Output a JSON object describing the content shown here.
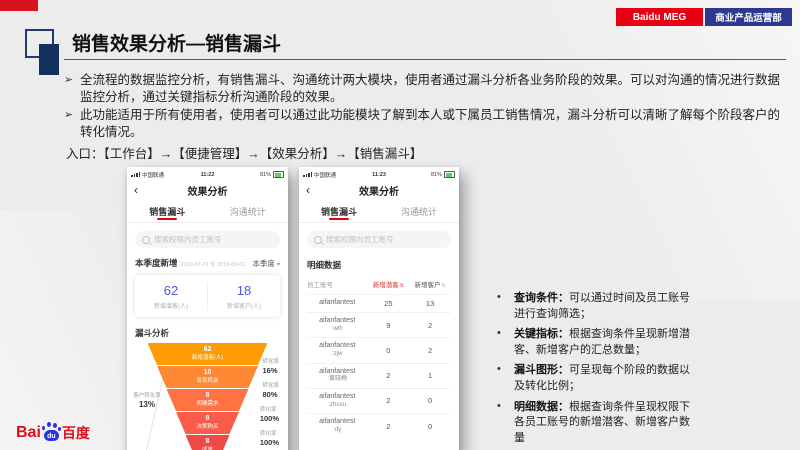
{
  "slide": {
    "title": "销售效果分析—销售漏斗",
    "badge_meg": "Baidu MEG",
    "badge_dept": "商业产品运营部",
    "accent_red": "#e60012",
    "badge_blue": "#2b3990",
    "marker_glyph": "➢",
    "dot_glyph": "•",
    "intro_bullets": [
      "全流程的数据监控分析，有销售漏斗、沟通统计两大模块，使用者通过漏斗分析各业务阶段的效果。可以对沟通的情况进行数据监控分析，通过关键指标分析沟通阶段的效果。",
      "此功能适用于所有使用者，使用者可以通过此功能模块了解到本人或下属员工销售情况，漏斗分析可以清晰了解每个阶段客户的转化情况。"
    ],
    "entry_path": "入口：【工作台】→【便捷管理】→【效果分析】→【销售漏斗】"
  },
  "phone1": {
    "status": {
      "carrier": "中国联通",
      "time": "11:22",
      "battery": "81%"
    },
    "back_glyph": "‹",
    "nav_title": "效果分析",
    "tabs": {
      "active": "销售漏斗",
      "inactive": "沟通统计"
    },
    "search_placeholder": "搜索权限内员工账号",
    "period": {
      "label": "本季度新增",
      "range": "2019-07-01 至 2019-09-01",
      "selector": "本季度",
      "caret": "▾"
    },
    "stats": [
      {
        "value": "62",
        "label": "新增潜客(人)"
      },
      {
        "value": "18",
        "label": "新增客户(人)"
      }
    ],
    "funnel_title": "漏斗分析",
    "funnel": {
      "overall_label": "客户转化率",
      "overall_rate": "13%",
      "rate_label": "转化率",
      "stages": [
        {
          "value": "62",
          "label": "新增潜客(人)",
          "color": "#ff9b05",
          "rate": ""
        },
        {
          "value": "10",
          "label": "发现机会",
          "color": "#ff8835",
          "rate": "16%"
        },
        {
          "value": "8",
          "label": "明确需求",
          "color": "#ff7244",
          "rate": "80%"
        },
        {
          "value": "8",
          "label": "决策购买",
          "color": "#fa5c49",
          "rate": "100%"
        },
        {
          "value": "8",
          "label": "成单",
          "color": "#ef4a43",
          "rate": "100%"
        }
      ]
    }
  },
  "phone2": {
    "status": {
      "carrier": "中国联通",
      "time": "11:23",
      "battery": "81%"
    },
    "back_glyph": "‹",
    "nav_title": "效果分析",
    "tabs": {
      "active": "销售漏斗",
      "inactive": "沟通统计"
    },
    "search_placeholder": "搜索权限内员工账号",
    "section_title": "明细数据",
    "table": {
      "headers": [
        "员工账号",
        "新增潜客",
        "新增客户"
      ],
      "sort_glyph": "⇅",
      "rows": [
        {
          "account": "aifanfantest",
          "sub": "",
          "leads": "25",
          "customers": "13"
        },
        {
          "account": "aifanfantest",
          "sub": ":wlh",
          "leads": "9",
          "customers": "2"
        },
        {
          "account": "aifanfantest",
          "sub": ":zjw",
          "leads": "0",
          "customers": "2"
        },
        {
          "account": "aifanfantest",
          "sub": ":黄晓梅",
          "leads": "2",
          "customers": "1"
        },
        {
          "account": "aifanfantest",
          "sub": ":zhuxu",
          "leads": "2",
          "customers": "0"
        },
        {
          "account": "aifanfantest",
          "sub": ":dy",
          "leads": "2",
          "customers": "0"
        }
      ]
    }
  },
  "features": [
    {
      "term": "查询条件：",
      "desc": "可以通过时间及员工账号进行查询筛选；"
    },
    {
      "term": "关键指标：",
      "desc": "根据查询条件呈现新增潜客、新增客户的汇总数量；"
    },
    {
      "term": "漏斗图形：",
      "desc": "可呈现每个阶段的数据以及转化比例；"
    },
    {
      "term": "明细数据：",
      "desc": "根据查询条件呈现权限下各员工账号的新增潜客、新增客户数量"
    }
  ],
  "footer_logo": {
    "bai": "Bai",
    "du": "du",
    "cn": "百度"
  }
}
